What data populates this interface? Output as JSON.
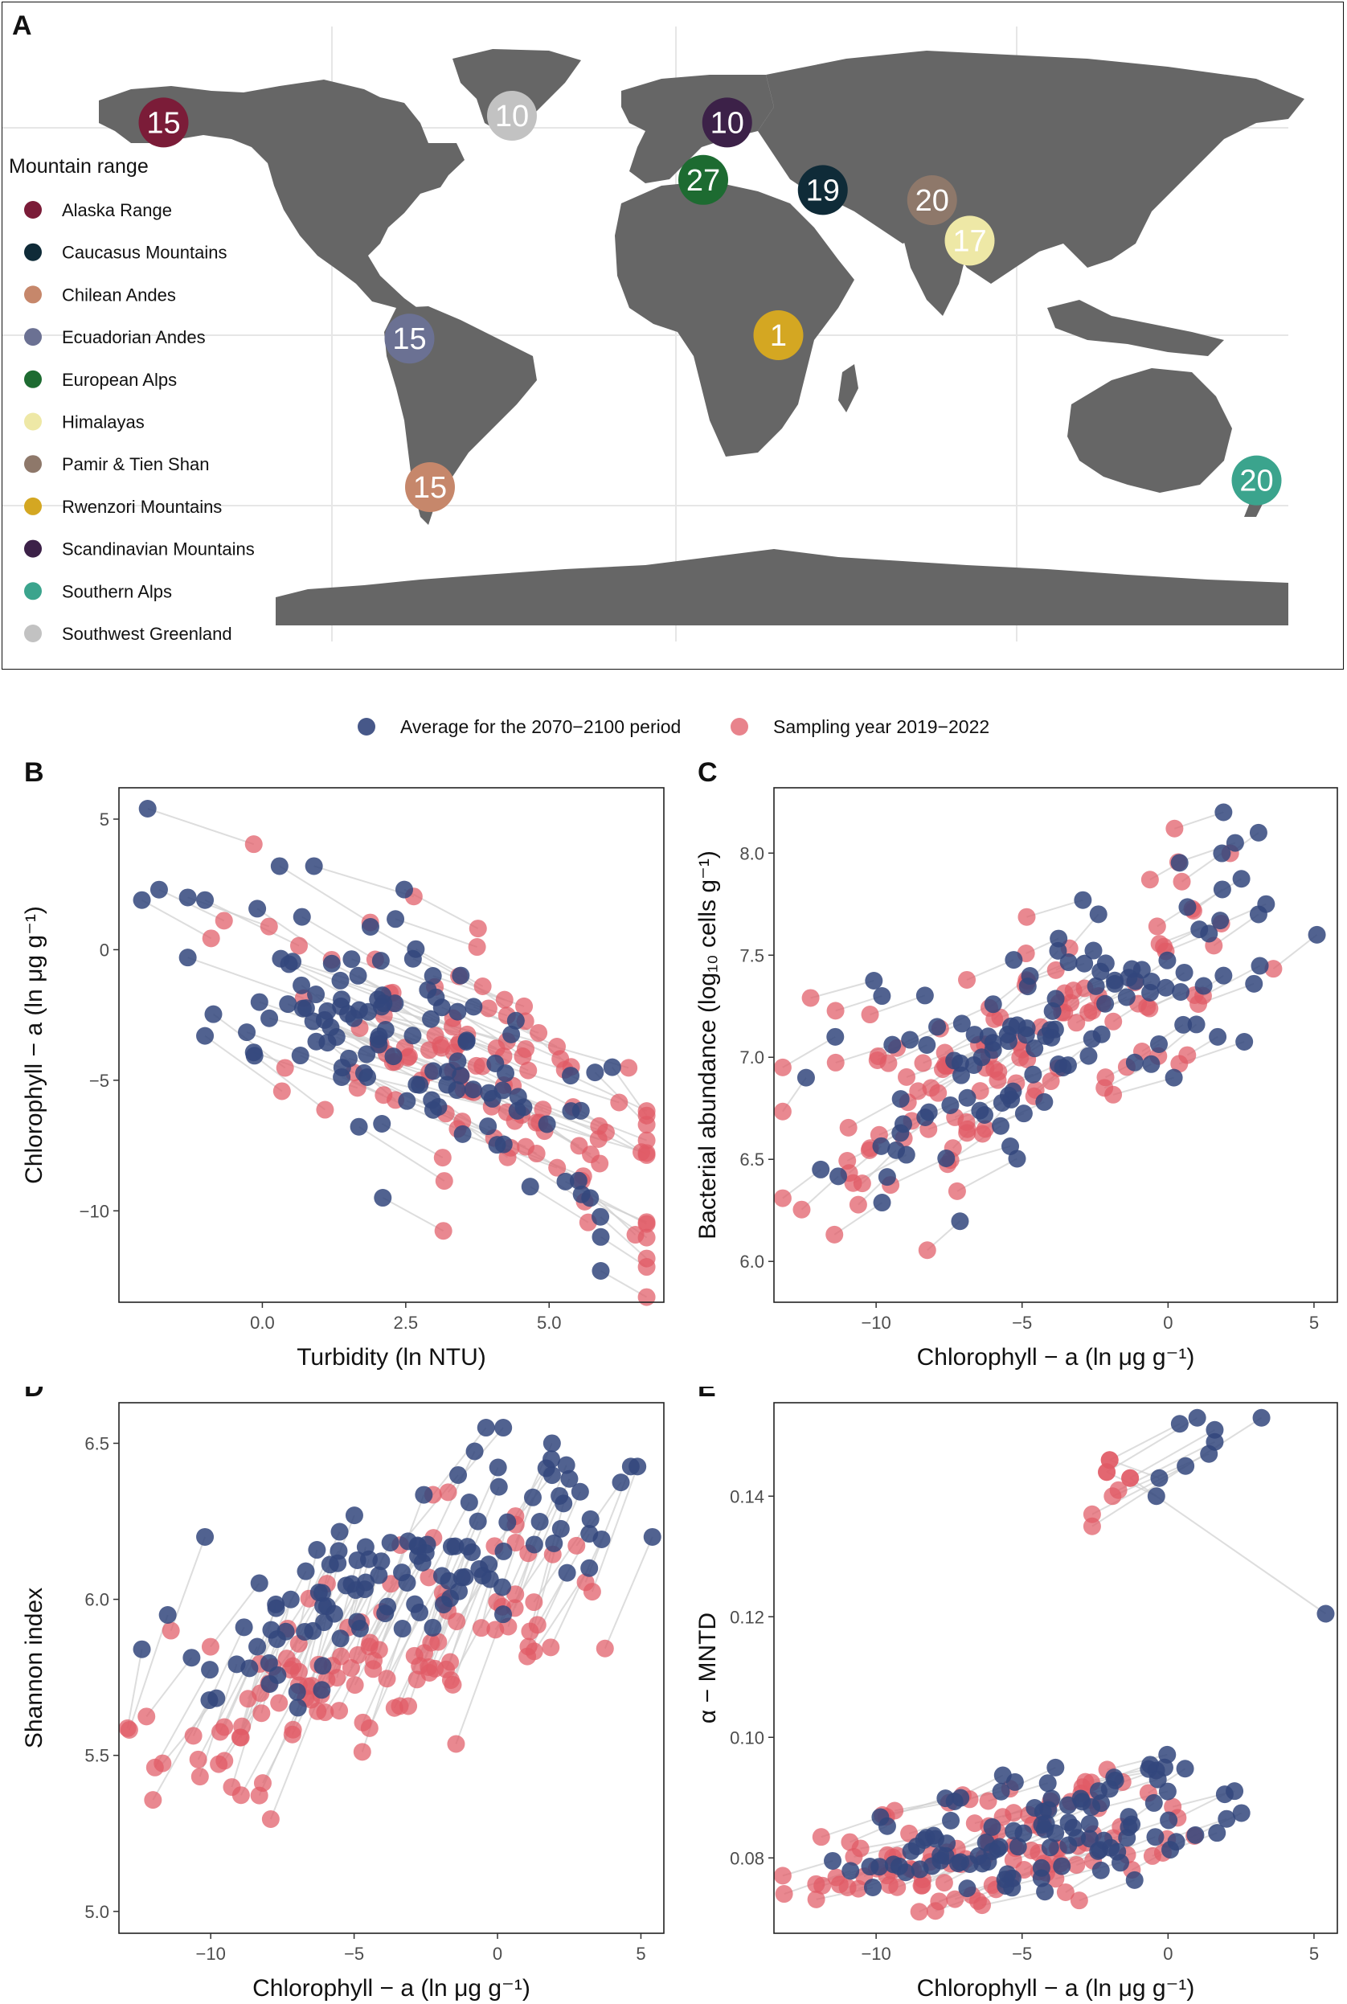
{
  "panels": {
    "A": "A",
    "B": "B",
    "C": "C",
    "D": "D",
    "E": "E"
  },
  "map": {
    "legend_title": "Mountain range",
    "ranges": [
      {
        "name": "Alaska Range",
        "color": "#7b1c38",
        "count": "15",
        "lon": -150,
        "lat": 63
      },
      {
        "name": "Caucasus Mountains",
        "color": "#0f2b38",
        "count": "19",
        "lon": 43,
        "lat": 43
      },
      {
        "name": "Chilean Andes",
        "color": "#c6876b",
        "count": "15",
        "lon": -72,
        "lat": -45
      },
      {
        "name": "Ecuadorian Andes",
        "color": "#6b7193",
        "count": "15",
        "lon": -78,
        "lat": -1
      },
      {
        "name": "European Alps",
        "color": "#1d6b31",
        "count": "27",
        "lon": 8,
        "lat": 46
      },
      {
        "name": "Himalayas",
        "color": "#eee8a6",
        "count": "17",
        "lon": 86,
        "lat": 28
      },
      {
        "name": "Pamir & Tien Shan",
        "color": "#8e786a",
        "count": "20",
        "lon": 75,
        "lat": 40
      },
      {
        "name": "Rwenzori Mountains",
        "color": "#d4a722",
        "count": "1",
        "lon": 30,
        "lat": 0
      },
      {
        "name": "Scandinavian Mountains",
        "color": "#3c2148",
        "count": "10",
        "lon": 15,
        "lat": 63
      },
      {
        "name": "Southern Alps",
        "color": "#3ba48d",
        "count": "20",
        "lon": 170,
        "lat": -43
      },
      {
        "name": "Southwest Greenland",
        "color": "#c2c2c2",
        "count": "10",
        "lon": -48,
        "lat": 65
      }
    ]
  },
  "legend": {
    "future": {
      "label": "Average for the 2070−2100 period",
      "color": "#33467c"
    },
    "current": {
      "label": "Sampling year 2019−2022",
      "color": "#e05a65"
    }
  },
  "chart_data": [
    {
      "panel": "B",
      "type": "scatter",
      "xlabel": "Turbidity (ln NTU)",
      "ylabel": "Chlorophyll − a (ln μg g⁻¹)",
      "xlim": [
        -2.5,
        7.0
      ],
      "ylim": [
        -13.5,
        6.2
      ],
      "xticks": [
        0,
        2.5,
        5
      ],
      "xtick_labels": [
        "0.0",
        "2.5",
        "5.0"
      ],
      "yticks": [
        5,
        0,
        -5,
        -10
      ],
      "ytick_labels": [
        "5",
        "0",
        "−5",
        "−10"
      ],
      "seed": 11,
      "n": 120,
      "future": {
        "x": [
          -1.5,
          6.2
        ],
        "y": [
          -12,
          5.2
        ],
        "slope": -1.35,
        "intercept": -0.5
      },
      "current": {
        "dx": 1.6,
        "dy": -1.6
      },
      "anchor_points_future": [
        [
          -2.0,
          5.4
        ],
        [
          -2.1,
          1.9
        ],
        [
          -1.8,
          2.3
        ],
        [
          -1.3,
          2.0
        ],
        [
          -1.0,
          1.9
        ],
        [
          -1.3,
          -0.3
        ],
        [
          -1.0,
          -3.3
        ],
        [
          0.3,
          3.2
        ],
        [
          0.9,
          3.2
        ],
        [
          5.9,
          -12.3
        ],
        [
          5.9,
          -11.0
        ],
        [
          6.1,
          -4.5
        ],
        [
          5.8,
          -4.7
        ],
        [
          2.1,
          -9.5
        ]
      ]
    },
    {
      "panel": "C",
      "type": "scatter",
      "xlabel": "Chlorophyll − a (ln μg g⁻¹)",
      "ylabel": "Bacterial abundance (log₁₀ cells g⁻¹)",
      "xlim": [
        -13.5,
        5.8
      ],
      "ylim": [
        5.8,
        8.32
      ],
      "xticks": [
        -10,
        -5,
        0,
        5
      ],
      "xtick_labels": [
        "−10",
        "−5",
        "0",
        "5"
      ],
      "yticks": [
        6.0,
        6.5,
        7.0,
        7.5,
        8.0
      ],
      "ytick_labels": [
        "6.0",
        "6.5",
        "7.0",
        "7.5",
        "8.0"
      ],
      "seed": 23,
      "n": 120,
      "future": {
        "x": [
          -12.5,
          5.3
        ],
        "y": [
          6.1,
          8.2
        ],
        "slope": 0.08,
        "intercept": 7.45
      },
      "current": {
        "dx": -1.6,
        "dy": -0.12
      },
      "anchor_points_future": [
        [
          1.9,
          8.2
        ],
        [
          3.1,
          8.1
        ],
        [
          2.3,
          8.05
        ],
        [
          3.1,
          7.7
        ],
        [
          5.1,
          7.6
        ],
        [
          -9.8,
          7.3
        ],
        [
          -12.4,
          6.9
        ],
        [
          -11.4,
          7.1
        ],
        [
          0.2,
          6.9
        ],
        [
          1.7,
          7.1
        ],
        [
          1.9,
          7.4
        ]
      ]
    },
    {
      "panel": "D",
      "type": "scatter",
      "xlabel": "Chlorophyll − a (ln μg g⁻¹)",
      "ylabel": "Shannon index",
      "xlim": [
        -13.2,
        5.8
      ],
      "ylim": [
        4.93,
        6.63
      ],
      "xticks": [
        -10,
        -5,
        0,
        5
      ],
      "xtick_labels": [
        "−10",
        "−5",
        "0",
        "5"
      ],
      "yticks": [
        5.0,
        5.5,
        6.0,
        6.5
      ],
      "ytick_labels": [
        "5.0",
        "5.5",
        "6.0",
        "6.5"
      ],
      "seed": 37,
      "n": 120,
      "future": {
        "x": [
          -12.5,
          5.5
        ],
        "y": [
          5.6,
          6.55
        ],
        "slope": 0.04,
        "intercept": 6.2
      },
      "current": {
        "dx": -1.5,
        "dy": -0.3
      },
      "anchor_points_future": [
        [
          5.4,
          6.2
        ],
        [
          3.2,
          6.21
        ],
        [
          3.2,
          6.1
        ],
        [
          1.9,
          6.5
        ],
        [
          2.4,
          6.43
        ],
        [
          1.7,
          6.42
        ],
        [
          0.2,
          6.55
        ],
        [
          -0.4,
          6.55
        ],
        [
          -12.4,
          5.84
        ],
        [
          -11.5,
          5.95
        ],
        [
          -10.2,
          6.2
        ]
      ]
    },
    {
      "panel": "E",
      "type": "scatter",
      "xlabel": "Chlorophyll − a (ln μg g⁻¹)",
      "ylabel": "α − MNTD",
      "xlim": [
        -13.5,
        5.8
      ],
      "ylim": [
        0.0675,
        0.1555
      ],
      "xticks": [
        -10,
        -5,
        0,
        5
      ],
      "xtick_labels": [
        "−10",
        "−5",
        "0",
        "5"
      ],
      "yticks": [
        0.08,
        0.1,
        0.12,
        0.14
      ],
      "ytick_labels": [
        "0.08",
        "0.10",
        "0.12",
        "0.14"
      ],
      "seed": 53,
      "n": 120,
      "future": {
        "x": [
          -12.5,
          3.5
        ],
        "y": [
          0.073,
          0.112
        ],
        "slope": 0.0009,
        "intercept": 0.089
      },
      "current": {
        "dx": -1.8,
        "dy": -0.003
      },
      "cluster_future": [
        [
          0.4,
          0.152
        ],
        [
          1.0,
          0.153
        ],
        [
          1.6,
          0.151
        ],
        [
          1.6,
          0.149
        ],
        [
          0.6,
          0.145
        ],
        [
          3.2,
          0.153
        ],
        [
          1.4,
          0.147
        ],
        [
          -0.3,
          0.143
        ],
        [
          -0.4,
          0.14
        ],
        [
          5.4,
          0.1205
        ]
      ],
      "cluster_current": [
        [
          -2.0,
          0.146
        ],
        [
          -2.1,
          0.144
        ],
        [
          -1.3,
          0.143
        ],
        [
          -1.7,
          0.141
        ],
        [
          -2.6,
          0.137
        ],
        [
          -2.6,
          0.135
        ],
        [
          -1.9,
          0.14
        ]
      ]
    }
  ]
}
